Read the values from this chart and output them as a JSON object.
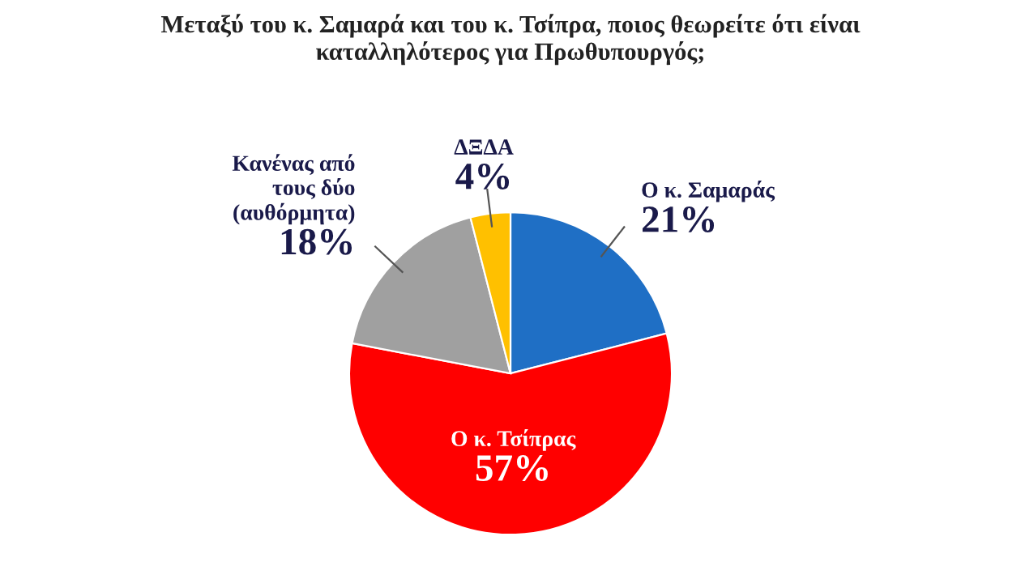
{
  "chart_data": {
    "type": "pie",
    "title": "Μεταξύ του κ. Σαμαρά και του κ. Τσίπρα, ποιος θεωρείτε ότι είναι\nκαταλληλότερος για Πρωθυπουργός;",
    "categories": [
      "Ο κ. Σαμαράς",
      "Ο κ. Τσίπρας",
      "Κανένας από\nτους δύο\n(αυθόρμητα)",
      "ΔΞΔΑ"
    ],
    "values": [
      21,
      57,
      18,
      4
    ],
    "colors": [
      "#1f6fc5",
      "#ff0000",
      "#a0a0a0",
      "#ffc000"
    ],
    "value_labels": [
      "21%",
      "57%",
      "18%",
      "4%"
    ]
  }
}
